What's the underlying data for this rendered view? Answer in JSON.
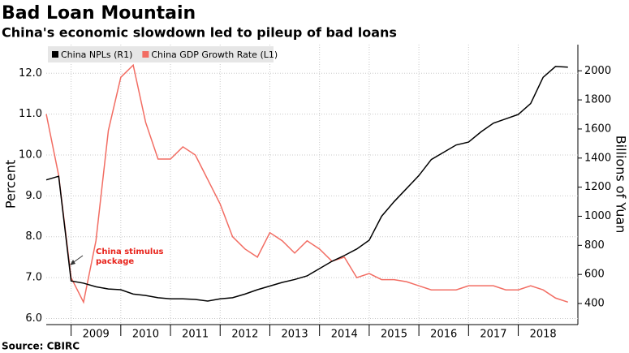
{
  "chart_data": {
    "type": "line",
    "title": "Bad Loan Mountain",
    "subtitle": "China's economic slowdown led to pileup of bad loans",
    "source": "Source: CBIRC",
    "ylabel": "Percent",
    "y2label": "Billions of Yuan",
    "legend": "upper left",
    "grid": true,
    "annotation": {
      "text": "China stimulus package",
      "color": "#e8231b"
    },
    "x": [
      2008.5,
      2008.75,
      2009,
      2009.25,
      2009.5,
      2009.75,
      2010,
      2010.25,
      2010.5,
      2010.75,
      2011,
      2011.25,
      2011.5,
      2011.75,
      2012,
      2012.25,
      2012.5,
      2012.75,
      2013,
      2013.25,
      2013.5,
      2013.75,
      2014,
      2014.25,
      2014.5,
      2014.75,
      2015,
      2015.25,
      2015.5,
      2015.75,
      2016,
      2016.25,
      2016.5,
      2016.75,
      2017,
      2017.25,
      2017.5,
      2017.75,
      2018,
      2018.25,
      2018.5,
      2018.75,
      2019
    ],
    "xlim": [
      2008.5,
      2019.2
    ],
    "xticks": [
      2009,
      2010,
      2011,
      2012,
      2013,
      2014,
      2015,
      2016,
      2017,
      2018
    ],
    "ylim": [
      5.85,
      12.7
    ],
    "yticks": [
      {
        "value": 6,
        "label": "6.0"
      },
      {
        "value": 7,
        "label": "7.0"
      },
      {
        "value": 8,
        "label": "8.0"
      },
      {
        "value": 9,
        "label": "9.0"
      },
      {
        "value": 10,
        "label": "10.0"
      },
      {
        "value": 11,
        "label": "11.0"
      },
      {
        "value": 12,
        "label": "12.0"
      }
    ],
    "y2lim": [
      255,
      2180
    ],
    "y2ticks": [
      400,
      600,
      800,
      1000,
      1200,
      1400,
      1600,
      1800,
      2000
    ],
    "series": [
      {
        "name": "China NPLs (R1)",
        "color": "#000000",
        "axis": "y2",
        "values": [
          1250,
          1275,
          555,
          540,
          515,
          500,
          495,
          465,
          455,
          440,
          432,
          432,
          428,
          417,
          432,
          440,
          465,
          495,
          520,
          545,
          565,
          590,
          640,
          690,
          730,
          775,
          835,
          1000,
          1100,
          1190,
          1280,
          1390,
          1440,
          1490,
          1510,
          1580,
          1640,
          1670,
          1700,
          1775,
          1955,
          2030,
          2025
        ]
      },
      {
        "name": "China GDP Growth Rate (L1)",
        "color": "#f26d63",
        "axis": "y",
        "values": [
          11.0,
          9.5,
          7.0,
          6.4,
          7.9,
          10.6,
          11.9,
          12.2,
          10.8,
          9.9,
          9.9,
          10.2,
          10.0,
          9.4,
          8.8,
          8.0,
          7.7,
          7.5,
          8.1,
          7.9,
          7.6,
          7.9,
          7.7,
          7.4,
          7.5,
          7.0,
          7.1,
          6.95,
          6.95,
          6.9,
          6.8,
          6.7,
          6.7,
          6.7,
          6.8,
          6.8,
          6.8,
          6.7,
          6.7,
          6.8,
          6.7,
          6.5,
          6.4
        ]
      }
    ]
  }
}
